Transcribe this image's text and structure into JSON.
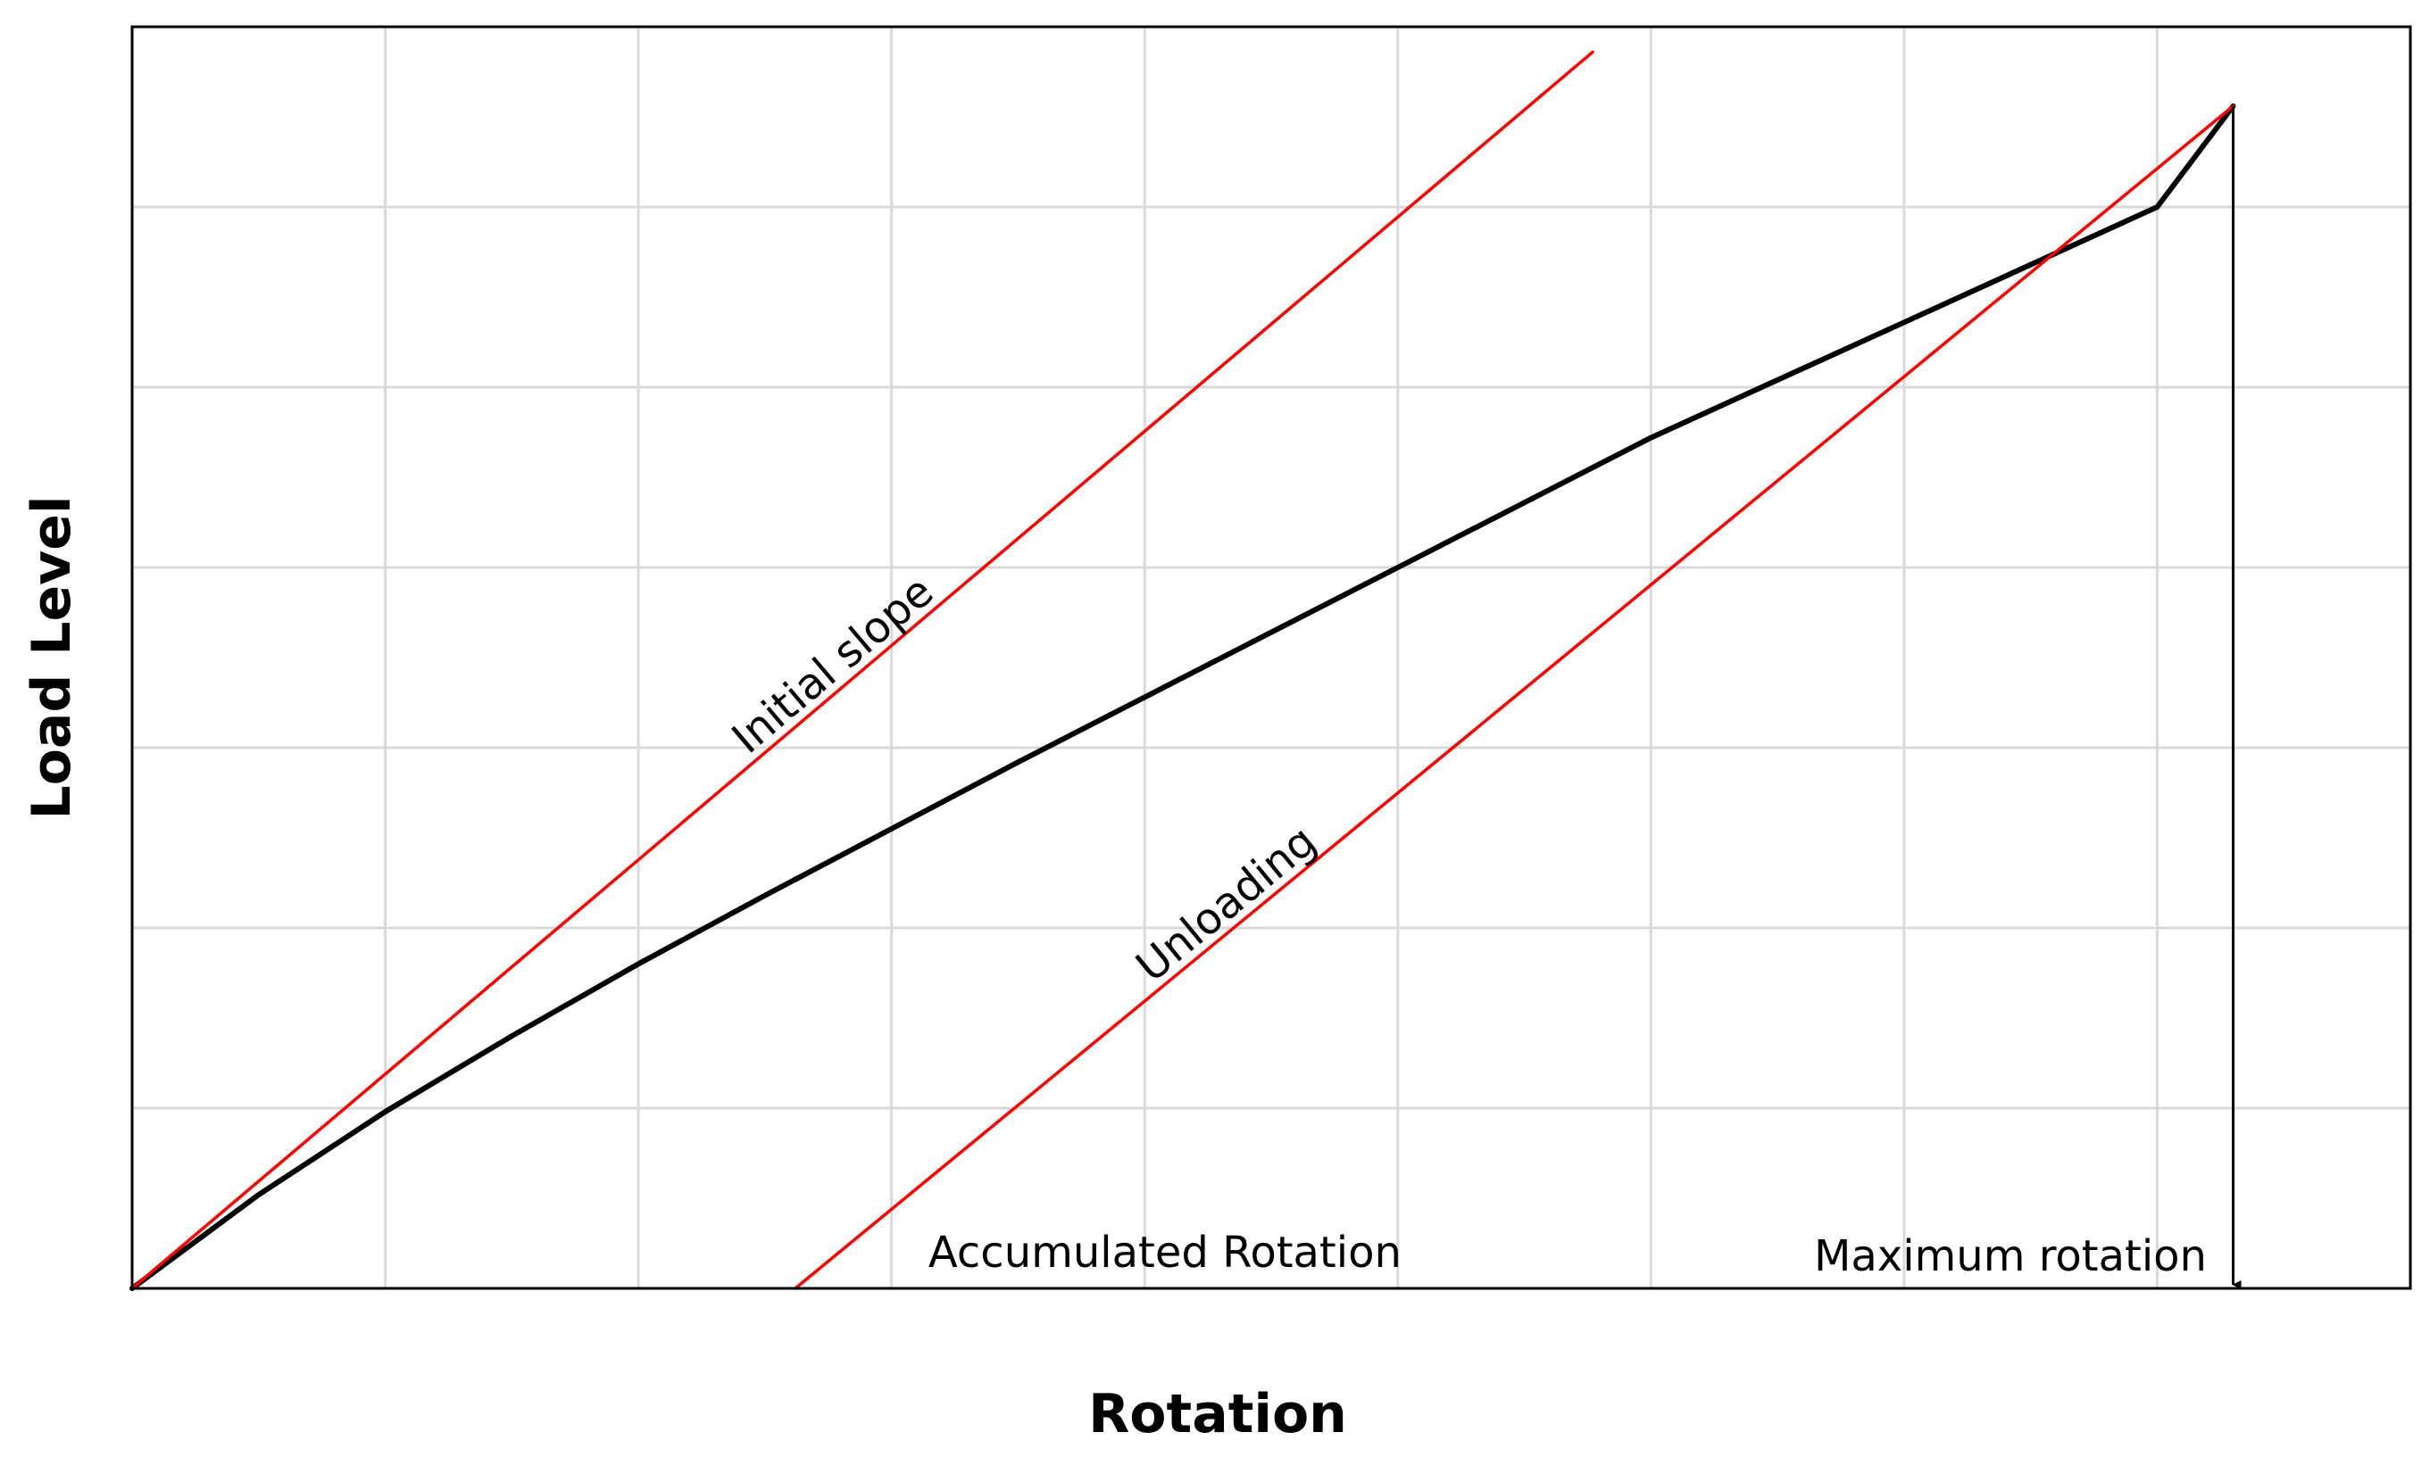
{
  "chart_data": {
    "type": "line",
    "title": "",
    "xlabel": "Rotation",
    "ylabel": "Load Level",
    "xlim": [
      0,
      9
    ],
    "ylim": [
      0,
      7
    ],
    "grid": true,
    "x_ticks": [
      0,
      1,
      2,
      3,
      4,
      5,
      6,
      7,
      8,
      9
    ],
    "y_ticks": [
      0,
      1,
      2,
      3,
      4,
      5,
      6,
      7
    ],
    "series": [
      {
        "color": "#000000",
        "x": [
          0,
          0.5,
          1.0,
          1.5,
          2.0,
          2.5,
          3.0,
          3.5,
          4.0,
          4.5,
          5.0,
          5.5,
          6.0,
          6.5,
          7.0,
          7.5,
          8.0,
          8.3
        ],
        "y": [
          0,
          0.52,
          0.98,
          1.4,
          1.8,
          2.18,
          2.55,
          2.92,
          3.28,
          3.64,
          4.0,
          4.36,
          4.72,
          5.04,
          5.36,
          5.68,
          6.0,
          6.56
        ]
      },
      {
        "color": "#ff0000",
        "x": [
          0,
          5.77
        ],
        "y": [
          0,
          6.86
        ]
      },
      {
        "color": "#ff0000",
        "x": [
          2.62,
          8.3
        ],
        "y": [
          0,
          6.56
        ]
      }
    ],
    "annotations": {
      "initial_slope": "Initial slope",
      "unloading": "Unloading",
      "accumulated_rotation": "Accumulated Rotation",
      "maximum_rotation": "Maximum rotation"
    },
    "colors": {
      "curve": "#000000",
      "reference_lines": "#ff0000",
      "grid": "#d9d9d9",
      "axis": "#000000"
    }
  }
}
